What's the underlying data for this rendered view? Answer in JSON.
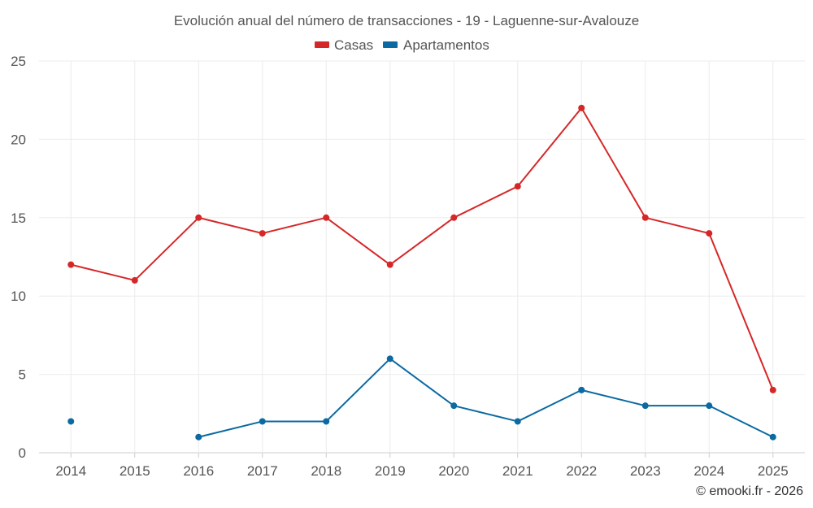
{
  "chart_data": {
    "type": "line",
    "title": "Evolución anual del número de transacciones - 19 - Laguenne-sur-Avalouze",
    "categories": [
      "2014",
      "2015",
      "2016",
      "2017",
      "2018",
      "2019",
      "2020",
      "2021",
      "2022",
      "2023",
      "2024",
      "2025"
    ],
    "series": [
      {
        "name": "Casas",
        "color": "#d62728",
        "values": [
          12,
          11,
          15,
          14,
          15,
          12,
          15,
          17,
          22,
          15,
          14,
          4
        ]
      },
      {
        "name": "Apartamentos",
        "color": "#0a6aa1",
        "values": [
          2,
          null,
          1,
          2,
          2,
          6,
          3,
          2,
          4,
          3,
          3,
          1
        ]
      }
    ],
    "yticks": [
      "0",
      "5",
      "10",
      "15",
      "20",
      "25"
    ],
    "ylim": [
      0,
      25
    ],
    "xlabel": "",
    "ylabel": "",
    "legend_position": "top-center",
    "grid": true
  },
  "credit": "© emooki.fr - 2026"
}
